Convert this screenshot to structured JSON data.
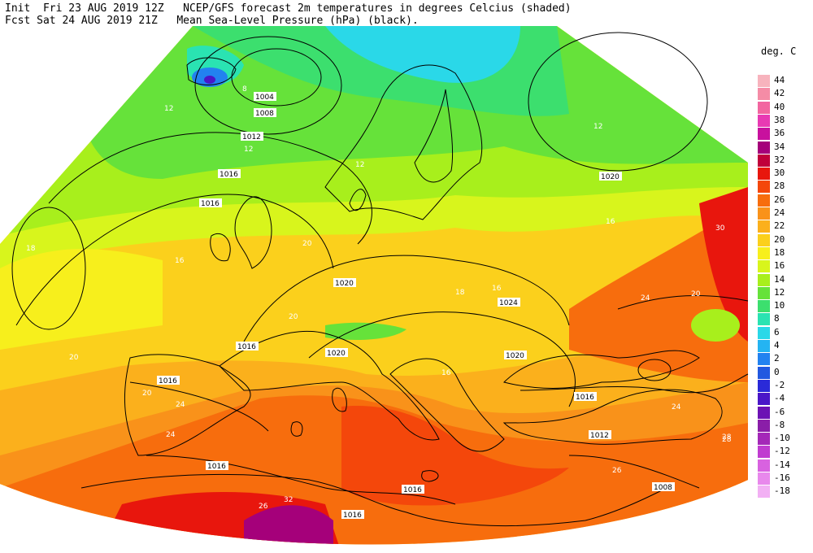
{
  "header": {
    "line1": "Init  Fri 23 AUG 2019 12Z   NCEP/GFS forecast 2m temperatures in degrees Celcius (shaded)",
    "line2": "Fcst Sat 24 AUG 2019 21Z   Mean Sea-Level Pressure (hPa) (black)."
  },
  "legend": {
    "unit": "deg. C",
    "entries": [
      {
        "label": "44",
        "color": "#f7b3bd"
      },
      {
        "label": "42",
        "color": "#f58ca6"
      },
      {
        "label": "40",
        "color": "#f266a0"
      },
      {
        "label": "38",
        "color": "#e83ab3"
      },
      {
        "label": "36",
        "color": "#c8119e"
      },
      {
        "label": "34",
        "color": "#a5007a"
      },
      {
        "label": "32",
        "color": "#c0003a"
      },
      {
        "label": "30",
        "color": "#e8160d"
      },
      {
        "label": "28",
        "color": "#f4470b"
      },
      {
        "label": "26",
        "color": "#f76d0d"
      },
      {
        "label": "24",
        "color": "#f9921a"
      },
      {
        "label": "22",
        "color": "#fbb01c"
      },
      {
        "label": "20",
        "color": "#fbd01c"
      },
      {
        "label": "18",
        "color": "#f7ef1c"
      },
      {
        "label": "16",
        "color": "#d8f51c"
      },
      {
        "label": "14",
        "color": "#a8ef1c"
      },
      {
        "label": "12",
        "color": "#66e23a"
      },
      {
        "label": "10",
        "color": "#3cdf6e"
      },
      {
        "label": "8",
        "color": "#2ae3b2"
      },
      {
        "label": "6",
        "color": "#2ad8e8"
      },
      {
        "label": "4",
        "color": "#24b4f2"
      },
      {
        "label": "2",
        "color": "#2282f0"
      },
      {
        "label": "0",
        "color": "#2258e0"
      },
      {
        "label": "-2",
        "color": "#2a2ad8"
      },
      {
        "label": "-4",
        "color": "#4a16c8"
      },
      {
        "label": "-6",
        "color": "#6c12b4"
      },
      {
        "label": "-8",
        "color": "#8a1ea8"
      },
      {
        "label": "-10",
        "color": "#a428b8"
      },
      {
        "label": "-12",
        "color": "#c03cd0"
      },
      {
        "label": "-14",
        "color": "#d862e0"
      },
      {
        "label": "-16",
        "color": "#e888ec"
      },
      {
        "label": "-18",
        "color": "#f2b0f4"
      }
    ]
  },
  "map": {
    "pressure_labels": [
      "1004",
      "1008",
      "1012",
      "1016",
      "1016",
      "1020",
      "1020",
      "1024",
      "1020",
      "1020",
      "1016",
      "1016",
      "1016",
      "1016",
      "1016",
      "1016",
      "1012",
      "1008"
    ],
    "temperature_labels": [
      "8",
      "12",
      "12",
      "12",
      "12",
      "16",
      "16",
      "18",
      "18",
      "20",
      "20",
      "20",
      "20",
      "20",
      "24",
      "24",
      "24",
      "26",
      "26",
      "28",
      "30",
      "32",
      "16",
      "16",
      "24",
      "28"
    ]
  }
}
